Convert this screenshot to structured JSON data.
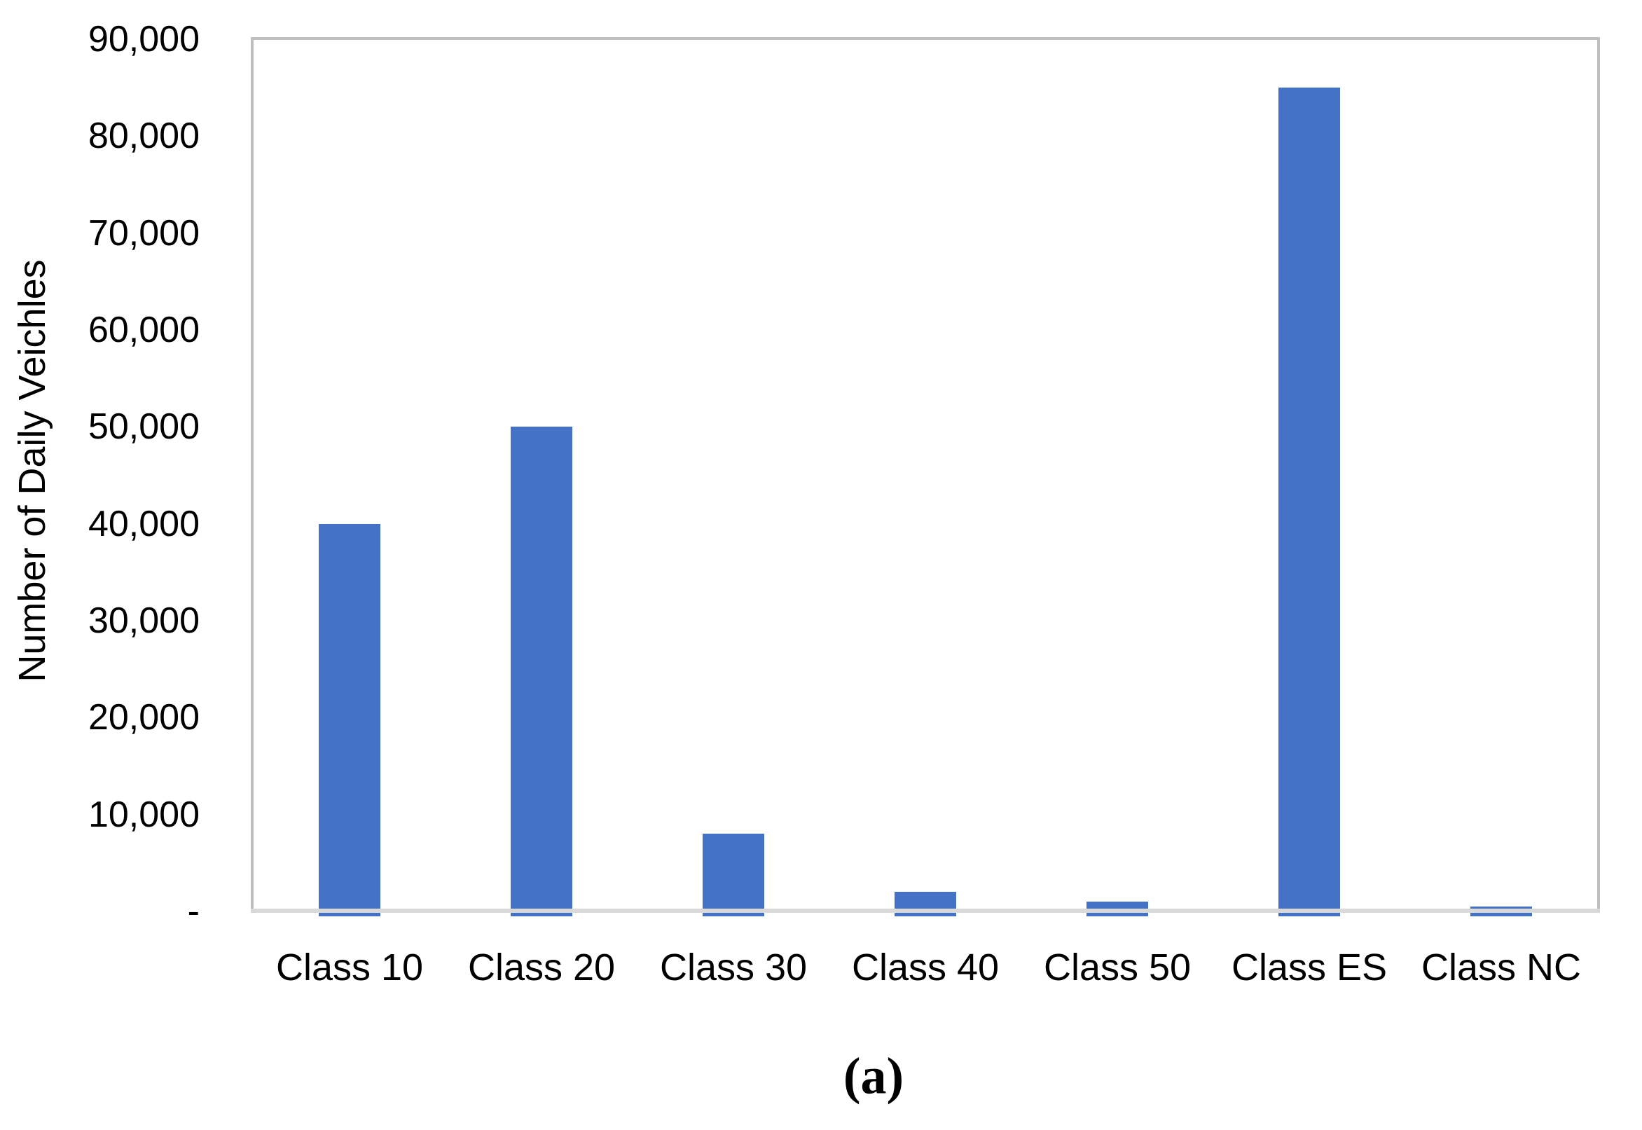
{
  "chart_data": {
    "type": "bar",
    "categories": [
      "Class 10",
      "Class 20",
      "Class 30",
      "Class 40",
      "Class 50",
      "Class ES",
      "Class NC"
    ],
    "values": [
      40000,
      50000,
      8000,
      2000,
      1000,
      85000,
      500
    ],
    "title": "",
    "xlabel": "",
    "ylabel": "Number of Daily Veichles",
    "ylim": [
      0,
      90000
    ],
    "ytick_interval": 10000,
    "yticks": [
      "90,000",
      "80,000",
      "70,000",
      "60,000",
      "50,000",
      "40,000",
      "30,000",
      "20,000",
      "10,000",
      "-"
    ],
    "grid": "off",
    "legend": "none",
    "caption": "(a)",
    "colors": {
      "bar": "#4472C4",
      "plot_border": "#BFBFBF",
      "axis_line": "#D9D9D9",
      "text": "#000000",
      "background": "#ffffff"
    }
  }
}
